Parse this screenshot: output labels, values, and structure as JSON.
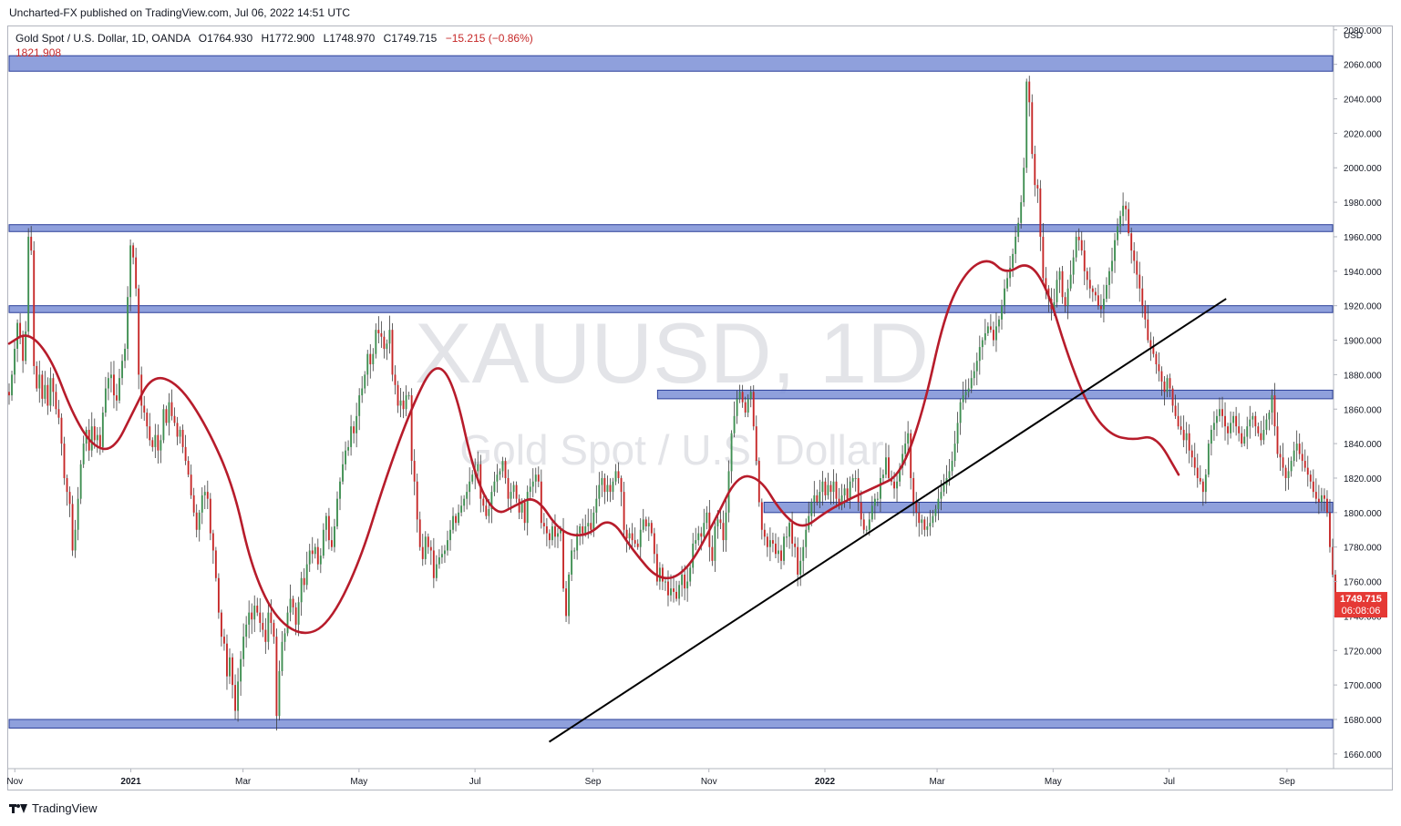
{
  "header": {
    "publisher": "Uncharted-FX published on TradingView.com, Jul 06, 2022 14:51 UTC"
  },
  "footer": {
    "brand": "TradingView"
  },
  "colors": {
    "up": "#26a69a",
    "up_body": "#3f8f52",
    "down": "#c62828",
    "wick": "#3c3c3c",
    "ma": "#b71c2b",
    "zone_fill": "#7b8fd6",
    "zone_border": "#2b3f99",
    "trendline": "#000000",
    "price_label_bg": "#e53935",
    "watermark": "#e3e4e8"
  },
  "chart_data": {
    "type": "candlestick",
    "title": "Gold Spot / U.S. Dollar, 1D, OANDA",
    "ohlc_labels": {
      "open": "O1764.930",
      "high": "H1772.900",
      "low": "L1748.970",
      "close": "C1749.715",
      "change": "−15.215 (−0.86%)"
    },
    "ma_value": "1821.908",
    "watermark": {
      "symbol": "XAUUSD, 1D",
      "name": "Gold Spot / U.S. Dollar"
    },
    "y_axis": {
      "unit": "USD",
      "range": [
        1652,
        2082
      ],
      "ticks": [
        "1660.000",
        "1680.000",
        "1700.000",
        "1720.000",
        "1740.000",
        "1760.000",
        "1780.000",
        "1800.000",
        "1820.000",
        "1840.000",
        "1860.000",
        "1880.000",
        "1900.000",
        "1920.000",
        "1940.000",
        "1960.000",
        "1980.000",
        "2000.000",
        "2020.000",
        "2040.000",
        "2060.000",
        "2080.000"
      ]
    },
    "x_axis": {
      "range": [
        "2020-10-29",
        "2022-09-25"
      ],
      "ticks": [
        {
          "label": "Nov",
          "date": "2020-11-01"
        },
        {
          "label": "2021",
          "date": "2021-01-01"
        },
        {
          "label": "Mar",
          "date": "2021-03-01"
        },
        {
          "label": "May",
          "date": "2021-05-01"
        },
        {
          "label": "Jul",
          "date": "2021-07-01"
        },
        {
          "label": "Sep",
          "date": "2021-09-01"
        },
        {
          "label": "Nov",
          "date": "2021-11-01"
        },
        {
          "label": "2022",
          "date": "2022-01-01"
        },
        {
          "label": "Mar",
          "date": "2022-03-01"
        },
        {
          "label": "May",
          "date": "2022-05-01"
        },
        {
          "label": "Jul",
          "date": "2022-07-01"
        },
        {
          "label": "Sep",
          "date": "2022-09-01"
        }
      ]
    },
    "last_price": {
      "value": "1749.715",
      "countdown": "06:08:06",
      "price": 1749.715
    },
    "zones": [
      {
        "from": "2020-10-29",
        "to": "2022-09-25",
        "low": 2056,
        "high": 2065
      },
      {
        "from": "2020-10-29",
        "to": "2022-09-25",
        "low": 1963,
        "high": 1967
      },
      {
        "from": "2020-10-29",
        "to": "2022-09-25",
        "low": 1916,
        "high": 1920
      },
      {
        "from": "2021-10-05",
        "to": "2022-09-25",
        "low": 1866,
        "high": 1871
      },
      {
        "from": "2021-11-30",
        "to": "2022-09-25",
        "low": 1800,
        "high": 1806
      },
      {
        "from": "2020-10-29",
        "to": "2022-09-25",
        "low": 1675,
        "high": 1680
      }
    ],
    "trendline": {
      "start": {
        "date": "2021-08-09",
        "price": 1667
      },
      "end": {
        "date": "2022-07-31",
        "price": 1924
      }
    },
    "closes": {
      "start": "2020-10-29",
      "step_days": 1.45,
      "values": [
        1868,
        1880,
        1895,
        1910,
        1902,
        1888,
        1905,
        1960,
        1952,
        1885,
        1872,
        1880,
        1866,
        1874,
        1862,
        1878,
        1870,
        1860,
        1855,
        1840,
        1820,
        1812,
        1805,
        1778,
        1790,
        1808,
        1828,
        1840,
        1848,
        1836,
        1850,
        1842,
        1845,
        1838,
        1858,
        1872,
        1878,
        1880,
        1868,
        1865,
        1878,
        1888,
        1895,
        1925,
        1955,
        1948,
        1930,
        1880,
        1862,
        1858,
        1850,
        1842,
        1838,
        1845,
        1836,
        1842,
        1860,
        1852,
        1864,
        1856,
        1852,
        1844,
        1848,
        1838,
        1830,
        1822,
        1810,
        1800,
        1790,
        1800,
        1810,
        1812,
        1808,
        1788,
        1778,
        1762,
        1742,
        1728,
        1724,
        1705,
        1716,
        1700,
        1685,
        1702,
        1715,
        1728,
        1735,
        1742,
        1738,
        1746,
        1742,
        1736,
        1732,
        1725,
        1742,
        1736,
        1728,
        1682,
        1708,
        1725,
        1730,
        1742,
        1750,
        1745,
        1735,
        1748,
        1762,
        1758,
        1770,
        1778,
        1776,
        1780,
        1770,
        1775,
        1790,
        1798,
        1784,
        1780,
        1792,
        1808,
        1818,
        1828,
        1836,
        1838,
        1850,
        1846,
        1856,
        1868,
        1872,
        1880,
        1892,
        1886,
        1892,
        1906,
        1904,
        1902,
        1895,
        1898,
        1906,
        1880,
        1874,
        1862,
        1865,
        1860,
        1868,
        1868,
        1830,
        1818,
        1796,
        1780,
        1773,
        1786,
        1780,
        1778,
        1762,
        1770,
        1774,
        1776,
        1778,
        1784,
        1790,
        1798,
        1794,
        1800,
        1804,
        1808,
        1812,
        1818,
        1822,
        1824,
        1828,
        1808,
        1804,
        1798,
        1802,
        1812,
        1818,
        1822,
        1824,
        1830,
        1820,
        1808,
        1812,
        1816,
        1808,
        1800,
        1806,
        1794,
        1812,
        1815,
        1818,
        1822,
        1818,
        1794,
        1792,
        1788,
        1784,
        1792,
        1786,
        1788,
        1790,
        1756,
        1740,
        1764,
        1778,
        1778,
        1788,
        1792,
        1788,
        1792,
        1794,
        1790,
        1800,
        1808,
        1816,
        1820,
        1812,
        1816,
        1812,
        1818,
        1824,
        1820,
        1812,
        1790,
        1785,
        1788,
        1784,
        1782,
        1780,
        1790,
        1796,
        1792,
        1794,
        1788,
        1776,
        1760,
        1768,
        1760,
        1760,
        1752,
        1756,
        1754,
        1750,
        1758,
        1764,
        1756,
        1760,
        1768,
        1782,
        1784,
        1788,
        1786,
        1794,
        1800,
        1780,
        1772,
        1792,
        1796,
        1794,
        1784,
        1800,
        1824,
        1846,
        1856,
        1866,
        1870,
        1864,
        1858,
        1866,
        1870,
        1850,
        1830,
        1806,
        1790,
        1786,
        1780,
        1784,
        1782,
        1776,
        1778,
        1772,
        1786,
        1786,
        1794,
        1782,
        1780,
        1764,
        1772,
        1780,
        1790,
        1798,
        1806,
        1810,
        1806,
        1812,
        1818,
        1810,
        1816,
        1812,
        1818,
        1808,
        1804,
        1810,
        1814,
        1808,
        1818,
        1820,
        1820,
        1806,
        1796,
        1790,
        1790,
        1796,
        1804,
        1808,
        1808,
        1820,
        1822,
        1832,
        1820,
        1818,
        1814,
        1818,
        1826,
        1834,
        1840,
        1846,
        1820,
        1806,
        1800,
        1794,
        1796,
        1790,
        1792,
        1794,
        1798,
        1802,
        1808,
        1812,
        1816,
        1820,
        1824,
        1830,
        1840,
        1852,
        1864,
        1868,
        1870,
        1872,
        1878,
        1882,
        1888,
        1896,
        1900,
        1904,
        1908,
        1906,
        1900,
        1908,
        1912,
        1920,
        1930,
        1936,
        1942,
        1950,
        1960,
        1968,
        1980,
        2000,
        2050,
        2038,
        2008,
        1990,
        1988,
        1960,
        1936,
        1930,
        1924,
        1918,
        1922,
        1935,
        1940,
        1925,
        1920,
        1930,
        1938,
        1948,
        1960,
        1958,
        1952,
        1940,
        1935,
        1930,
        1928,
        1926,
        1920,
        1918,
        1924,
        1932,
        1940,
        1946,
        1958,
        1966,
        1972,
        1978,
        1976,
        1962,
        1952,
        1946,
        1938,
        1930,
        1920,
        1912,
        1900,
        1896,
        1892,
        1886,
        1882,
        1876,
        1870,
        1878,
        1872,
        1862,
        1856,
        1850,
        1848,
        1842,
        1846,
        1836,
        1832,
        1826,
        1820,
        1818,
        1812,
        1822,
        1840,
        1848,
        1852,
        1856,
        1860,
        1856,
        1850,
        1846,
        1852,
        1856,
        1850,
        1846,
        1840,
        1844,
        1850,
        1854,
        1856,
        1850,
        1846,
        1842,
        1848,
        1854,
        1858,
        1868,
        1850,
        1834,
        1832,
        1826,
        1820,
        1824,
        1830,
        1836,
        1840,
        1834,
        1830,
        1826,
        1822,
        1818,
        1812,
        1808,
        1806,
        1810,
        1808,
        1800,
        1780,
        1764,
        1750
      ]
    },
    "ma": {
      "points": [
        {
          "date": "2020-10-29",
          "price": 1898
        },
        {
          "date": "2020-11-08",
          "price": 1905
        },
        {
          "date": "2020-11-20",
          "price": 1890
        },
        {
          "date": "2020-12-01",
          "price": 1858
        },
        {
          "date": "2020-12-12",
          "price": 1838
        },
        {
          "date": "2020-12-23",
          "price": 1836
        },
        {
          "date": "2021-01-02",
          "price": 1858
        },
        {
          "date": "2021-01-12",
          "price": 1880
        },
        {
          "date": "2021-01-26",
          "price": 1875
        },
        {
          "date": "2021-02-10",
          "price": 1850
        },
        {
          "date": "2021-02-24",
          "price": 1815
        },
        {
          "date": "2021-03-05",
          "price": 1770
        },
        {
          "date": "2021-03-17",
          "price": 1740
        },
        {
          "date": "2021-04-01",
          "price": 1728
        },
        {
          "date": "2021-04-15",
          "price": 1735
        },
        {
          "date": "2021-05-01",
          "price": 1770
        },
        {
          "date": "2021-05-15",
          "price": 1820
        },
        {
          "date": "2021-05-29",
          "price": 1862
        },
        {
          "date": "2021-06-10",
          "price": 1888
        },
        {
          "date": "2021-06-20",
          "price": 1875
        },
        {
          "date": "2021-07-01",
          "price": 1820
        },
        {
          "date": "2021-07-12",
          "price": 1798
        },
        {
          "date": "2021-07-22",
          "price": 1804
        },
        {
          "date": "2021-08-02",
          "price": 1810
        },
        {
          "date": "2021-08-15",
          "price": 1788
        },
        {
          "date": "2021-08-29",
          "price": 1786
        },
        {
          "date": "2021-09-10",
          "price": 1798
        },
        {
          "date": "2021-09-22",
          "price": 1778
        },
        {
          "date": "2021-10-06",
          "price": 1760
        },
        {
          "date": "2021-10-20",
          "price": 1765
        },
        {
          "date": "2021-11-04",
          "price": 1795
        },
        {
          "date": "2021-11-16",
          "price": 1822
        },
        {
          "date": "2021-11-28",
          "price": 1820
        },
        {
          "date": "2021-12-09",
          "price": 1800
        },
        {
          "date": "2021-12-20",
          "price": 1790
        },
        {
          "date": "2022-01-01",
          "price": 1800
        },
        {
          "date": "2022-01-14",
          "price": 1808
        },
        {
          "date": "2022-01-28",
          "price": 1815
        },
        {
          "date": "2022-02-10",
          "price": 1822
        },
        {
          "date": "2022-02-22",
          "price": 1860
        },
        {
          "date": "2022-03-05",
          "price": 1915
        },
        {
          "date": "2022-03-16",
          "price": 1940
        },
        {
          "date": "2022-03-28",
          "price": 1948
        },
        {
          "date": "2022-04-06",
          "price": 1938
        },
        {
          "date": "2022-04-18",
          "price": 1946
        },
        {
          "date": "2022-04-28",
          "price": 1930
        },
        {
          "date": "2022-05-09",
          "price": 1890
        },
        {
          "date": "2022-05-20",
          "price": 1860
        },
        {
          "date": "2022-05-31",
          "price": 1845
        },
        {
          "date": "2022-06-12",
          "price": 1842
        },
        {
          "date": "2022-06-24",
          "price": 1845
        },
        {
          "date": "2022-07-06",
          "price": 1822
        }
      ]
    }
  }
}
